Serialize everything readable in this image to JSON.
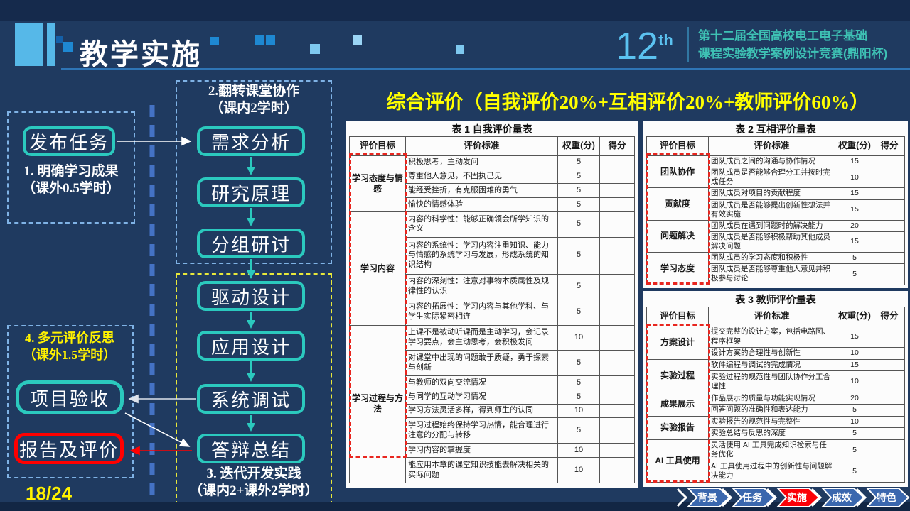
{
  "header": {
    "title": "教学实施",
    "edition_number": "12",
    "edition_suffix": "th",
    "competition_line1": "第十二届全国高校电工电子基础",
    "competition_line2": "课程实验教学案例设计竞赛(鼎阳杯)"
  },
  "summary_title": "综合评价（自我评价20%+互相评价20%+教师评价60%）",
  "page_indicator": "18/24",
  "flowchart": {
    "stage1": {
      "box": "发布任务",
      "label_line1": "1. 明确学习成果",
      "label_line2": "（课外0.5学时）"
    },
    "stage2": {
      "label_line1": "2.翻转课堂协作",
      "label_line2": "（课内2学时）",
      "boxes": [
        "需求分析",
        "研究原理",
        "分组研讨"
      ]
    },
    "stage3": {
      "boxes": [
        "驱动设计",
        "应用设计",
        "系统调试",
        "答辩总结"
      ],
      "label_line1": "3. 迭代开发实践",
      "label_line2": "（课内2+课外2学时）"
    },
    "stage4": {
      "label_line1": "4. 多元评价反思",
      "label_line2": "（课外1.5学时）",
      "box_accept": "项目验收",
      "box_report": "报告及评价"
    }
  },
  "tables": [
    {
      "title": "表 1  自我评价量表",
      "headers": [
        "评价目标",
        "评价标准",
        "权重(分)",
        "得分"
      ],
      "groups": [
        {
          "goal": "学习态度与情感",
          "rows": [
            {
              "criteria": "积极思考，主动发问",
              "weight": "5",
              "score": ""
            },
            {
              "criteria": "尊重他人意见，不固执己见",
              "weight": "5",
              "score": ""
            },
            {
              "criteria": "能经受挫折，有克服困难的勇气",
              "weight": "5",
              "score": ""
            },
            {
              "criteria": "愉快的情感体验",
              "weight": "5",
              "score": ""
            }
          ]
        },
        {
          "goal": "学习内容",
          "rows": [
            {
              "criteria": "内容的科学性：能够正确领会所学知识的含义",
              "weight": "5",
              "score": ""
            },
            {
              "criteria": "内容的系统性：学习内容注重知识、能力与情感的系统学习与发展，形成系统的知识结构",
              "weight": "5",
              "score": ""
            },
            {
              "criteria": "内容的深刻性：注意对事物本质属性及规律性的认识",
              "weight": "5",
              "score": ""
            },
            {
              "criteria": "内容的拓展性：学习内容与其他学科、与学生实际紧密相连",
              "weight": "5",
              "score": ""
            }
          ]
        },
        {
          "goal": "学习过程与方法",
          "rows": [
            {
              "criteria": "上课不是被动听课而是主动学习，会记录学习要点，会主动思考，会积极发问",
              "weight": "10",
              "score": ""
            },
            {
              "criteria": "对课堂中出现的问题敢于质疑，勇于探索与创新",
              "weight": "5",
              "score": ""
            },
            {
              "criteria": "与教师的双向交流情况",
              "weight": "5",
              "score": ""
            },
            {
              "criteria": "与同学的互动学习情况",
              "weight": "5",
              "score": ""
            },
            {
              "criteria": "学习方法灵活多样，得到师生的认同",
              "weight": "10",
              "score": ""
            },
            {
              "criteria": "学习过程始终保持学习热情，能合理进行注意的分配与转移",
              "weight": "5",
              "score": ""
            },
            {
              "criteria": "学习内容的掌握度",
              "weight": "10",
              "score": ""
            },
            {
              "criteria": "能应用本章的课堂知识技能去解决相关的实际问题",
              "weight": "10",
              "score": ""
            }
          ]
        }
      ]
    },
    {
      "title": "表 2  互相评价量表",
      "headers": [
        "评价目标",
        "评价标准",
        "权重(分)",
        "得分"
      ],
      "groups": [
        {
          "goal": "团队协作",
          "rows": [
            {
              "criteria": "团队成员之间的沟通与协作情况",
              "weight": "15",
              "score": ""
            },
            {
              "criteria": "团队成员是否能够合理分工并按时完成任务",
              "weight": "10",
              "score": ""
            }
          ]
        },
        {
          "goal": "贡献度",
          "rows": [
            {
              "criteria": "团队成员对项目的贡献程度",
              "weight": "15",
              "score": ""
            },
            {
              "criteria": "团队成员是否能够提出创新性想法并有效实施",
              "weight": "15",
              "score": ""
            }
          ]
        },
        {
          "goal": "问题解决",
          "rows": [
            {
              "criteria": "团队成员在遇到问题时的解决能力",
              "weight": "20",
              "score": ""
            },
            {
              "criteria": "团队成员是否能够积极帮助其他成员解决问题",
              "weight": "15",
              "score": ""
            }
          ]
        },
        {
          "goal": "学习态度",
          "rows": [
            {
              "criteria": "团队成员的学习态度和积极性",
              "weight": "5",
              "score": ""
            },
            {
              "criteria": "团队成员是否能够尊重他人意见并积极参与讨论",
              "weight": "5",
              "score": ""
            }
          ]
        }
      ]
    },
    {
      "title": "表 3  教师评价量表",
      "headers": [
        "评价目标",
        "评价标准",
        "权重(分)",
        "得分"
      ],
      "groups": [
        {
          "goal": "方案设计",
          "rows": [
            {
              "criteria": "提交完整的设计方案，包括电路图、程序框架",
              "weight": "15",
              "score": ""
            },
            {
              "criteria": "设计方案的合理性与创新性",
              "weight": "10",
              "score": ""
            }
          ]
        },
        {
          "goal": "实验过程",
          "rows": [
            {
              "criteria": "软件编程与调试的完成情况",
              "weight": "15",
              "score": ""
            },
            {
              "criteria": "实验过程的规范性与团队协作分工合理性",
              "weight": "10",
              "score": ""
            }
          ]
        },
        {
          "goal": "成果展示",
          "rows": [
            {
              "criteria": "作品展示的质量与功能实现情况",
              "weight": "20",
              "score": ""
            },
            {
              "criteria": "回答问题的准确性和表达能力",
              "weight": "5",
              "score": ""
            }
          ]
        },
        {
          "goal": "实验报告",
          "rows": [
            {
              "criteria": "实验报告的规范性与完整性",
              "weight": "10",
              "score": ""
            },
            {
              "criteria": "实验总结与反思的深度",
              "weight": "5",
              "score": ""
            }
          ]
        },
        {
          "goal": "AI 工具使用",
          "rows": [
            {
              "criteria": "灵活使用 AI 工具完成知识检索与任务优化",
              "weight": "5",
              "score": ""
            },
            {
              "criteria": "AI 工具使用过程中的创新性与问题解决能力",
              "weight": "5",
              "score": ""
            }
          ]
        }
      ]
    }
  ],
  "nav": {
    "items": [
      {
        "label": "背景",
        "active": false
      },
      {
        "label": "任务",
        "active": false
      },
      {
        "label": "实施",
        "active": true
      },
      {
        "label": "成效",
        "active": false
      },
      {
        "label": "特色",
        "active": false
      }
    ]
  },
  "colors": {
    "background": "#1F3A60",
    "accent_teal": "#2BC9BE",
    "accent_yellow": "#FFF200",
    "accent_red": "#FF0000",
    "nav_blue": "#3A67AE",
    "nav_active_red": "#FB0007",
    "deco_light_blue": "#56B8E8"
  }
}
